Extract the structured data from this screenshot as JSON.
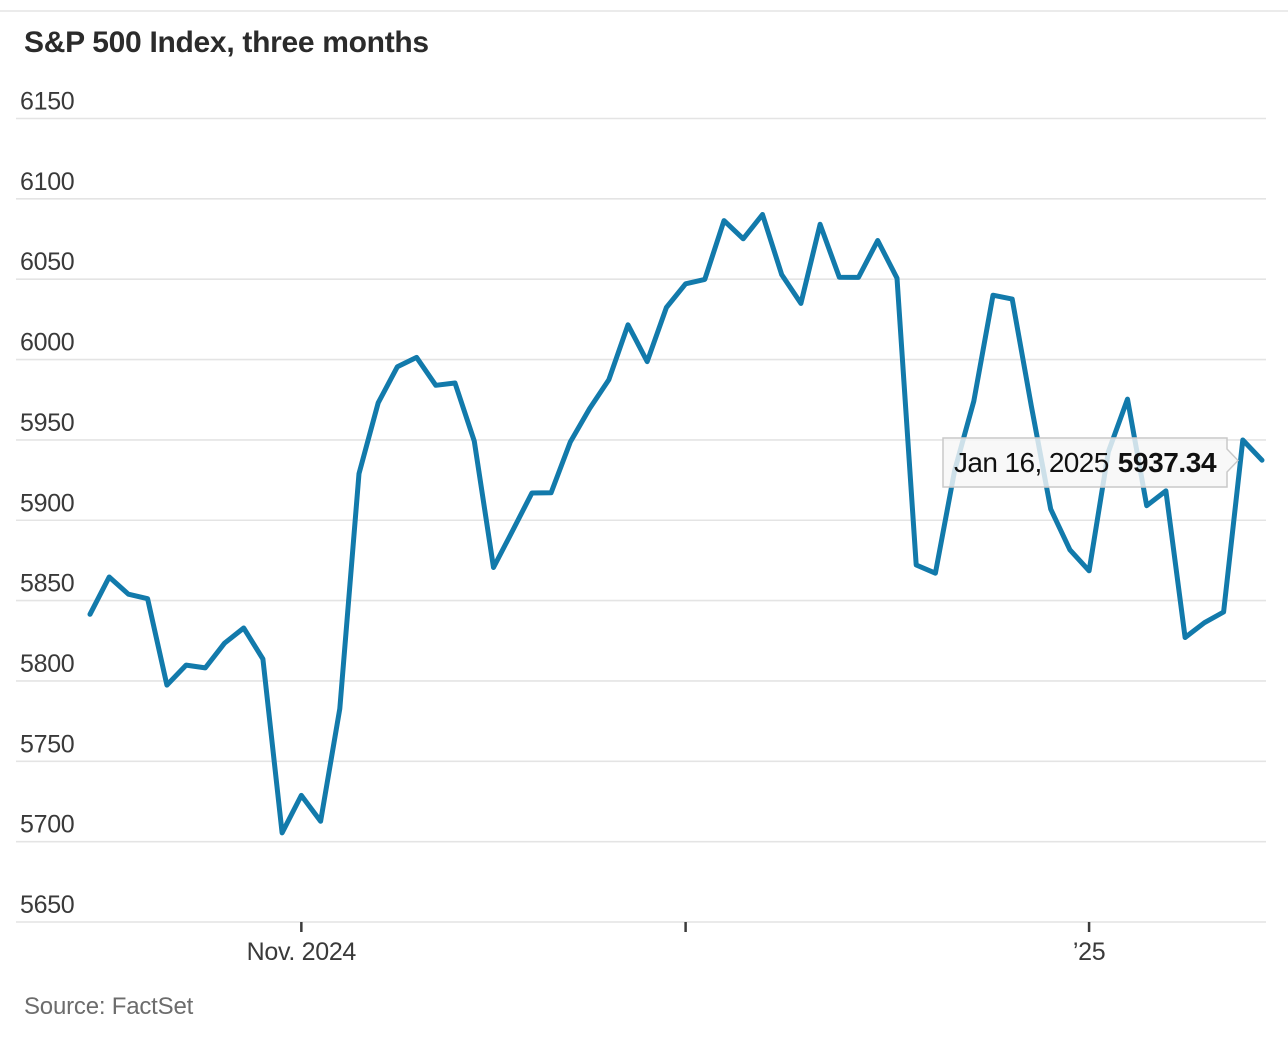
{
  "title": "S&P 500 Index, three months",
  "source": "Source: FactSet",
  "tooltip": {
    "date": "Jan 16, 2025",
    "value": "5937.34"
  },
  "colors": {
    "line": "#127aab",
    "grid": "#e4e4e4",
    "axis_text": "#3a3a3a",
    "title_text": "#2b2b2b",
    "source_text": "#6c6c6c",
    "tooltip_bg": "#f6f6f6",
    "tooltip_border": "#c9c9c9",
    "tooltip_value_text": "#111111"
  },
  "chart_data": {
    "type": "line",
    "title": "S&P 500 Index, three months",
    "series_name": "S&P 500 Index",
    "xlabel": "",
    "ylabel": "",
    "grid": "horizontal",
    "ylim": [
      5650,
      6150
    ],
    "yticks": [
      6150,
      6100,
      6050,
      6000,
      5950,
      5900,
      5850,
      5800,
      5750,
      5700,
      5650
    ],
    "xticks": [
      {
        "label": "Nov. 2024",
        "index": 11
      },
      {
        "label": "",
        "index": 31
      },
      {
        "label": "’25",
        "index": 52
      }
    ],
    "x": [
      "Oct. 17",
      "Oct. 18",
      "Oct. 21",
      "Oct. 22",
      "Oct. 23",
      "Oct. 24",
      "Oct. 25",
      "Oct. 28",
      "Oct. 29",
      "Oct. 30",
      "Oct. 31",
      "Nov. 1",
      "Nov. 4",
      "Nov. 5",
      "Nov. 6",
      "Nov. 7",
      "Nov. 8",
      "Nov. 11",
      "Nov. 12",
      "Nov. 13",
      "Nov. 14",
      "Nov. 15",
      "Nov. 18",
      "Nov. 19",
      "Nov. 20",
      "Nov. 21",
      "Nov. 22",
      "Nov. 25",
      "Nov. 26",
      "Nov. 27",
      "Nov. 29",
      "Dec. 2",
      "Dec. 3",
      "Dec. 4",
      "Dec. 5",
      "Dec. 6",
      "Dec. 9",
      "Dec. 10",
      "Dec. 11",
      "Dec. 12",
      "Dec. 13",
      "Dec. 16",
      "Dec. 17",
      "Dec. 18",
      "Dec. 19",
      "Dec. 20",
      "Dec. 23",
      "Dec. 24",
      "Dec. 26",
      "Dec. 27",
      "Dec. 30",
      "Dec. 31",
      "Jan. 2",
      "Jan. 3",
      "Jan. 6",
      "Jan. 7",
      "Jan. 8",
      "Jan. 10",
      "Jan. 13",
      "Jan. 14",
      "Jan. 15",
      "Jan. 16"
    ],
    "values": [
      5841.47,
      5864.67,
      5853.98,
      5851.2,
      5797.42,
      5809.86,
      5808.12,
      5823.52,
      5832.92,
      5813.67,
      5705.45,
      5728.8,
      5712.69,
      5782.76,
      5929.04,
      5973.1,
      5995.54,
      6001.35,
      5983.99,
      5985.38,
      5949.17,
      5870.62,
      5893.62,
      5916.98,
      5917.11,
      5948.71,
      5969.34,
      5987.37,
      6021.63,
      5998.74,
      6032.38,
      6047.15,
      6049.88,
      6086.49,
      6075.11,
      6090.27,
      6052.85,
      6034.91,
      6084.19,
      6051.25,
      6051.09,
      6074.08,
      6050.61,
      5872.16,
      5867.08,
      5930.85,
      5974.07,
      6040.04,
      6037.59,
      5970.84,
      5906.94,
      5881.63,
      5868.55,
      5942.47,
      5975.38,
      5909.03,
      5918.25,
      5827.04,
      5836.22,
      5842.91,
      5949.91,
      5937.34
    ],
    "last_point": {
      "date": "Jan 16, 2025",
      "value": 5937.34
    }
  }
}
